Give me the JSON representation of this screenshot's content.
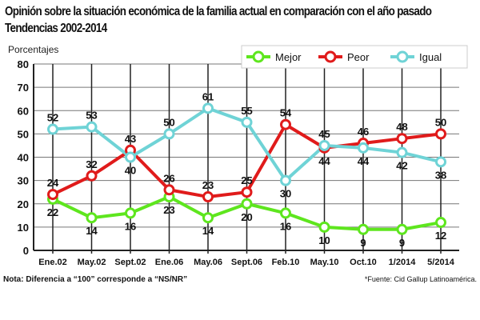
{
  "chart_data": {
    "type": "line",
    "title": "Opinión sobre la situación económica de la familia actual en comparación con el año pasado",
    "subtitle": "Tendencias 2002-2014",
    "ylabel": "Porcentajes",
    "xlabel": "",
    "ylim": [
      0,
      80
    ],
    "yticks": [
      0,
      10,
      20,
      30,
      40,
      50,
      60,
      70,
      80
    ],
    "grid": true,
    "legend_position": "top-right",
    "categories": [
      "Ene.02",
      "May.02",
      "Sept.02",
      "Ene.06",
      "May.06",
      "Sept.06",
      "Feb.10",
      "May.10",
      "Oct.10",
      "1/2014",
      "5/2014"
    ],
    "series": [
      {
        "name": "Mejor",
        "color": "#5ee61e",
        "values": [
          22,
          14,
          16,
          23,
          14,
          20,
          16,
          10,
          9,
          9,
          12
        ]
      },
      {
        "name": "Peor",
        "color": "#e01b1b",
        "values": [
          24,
          32,
          43,
          26,
          23,
          25,
          54,
          44,
          46,
          48,
          50
        ]
      },
      {
        "name": "Igual",
        "color": "#6fd3d6",
        "values": [
          52,
          53,
          40,
          50,
          61,
          55,
          30,
          45,
          44,
          42,
          38
        ]
      }
    ],
    "note": "Nota: Diferencia a “100” corresponde a “NS/NR”",
    "source": "*Fuente: Cid Gallup Latinoamérica."
  }
}
